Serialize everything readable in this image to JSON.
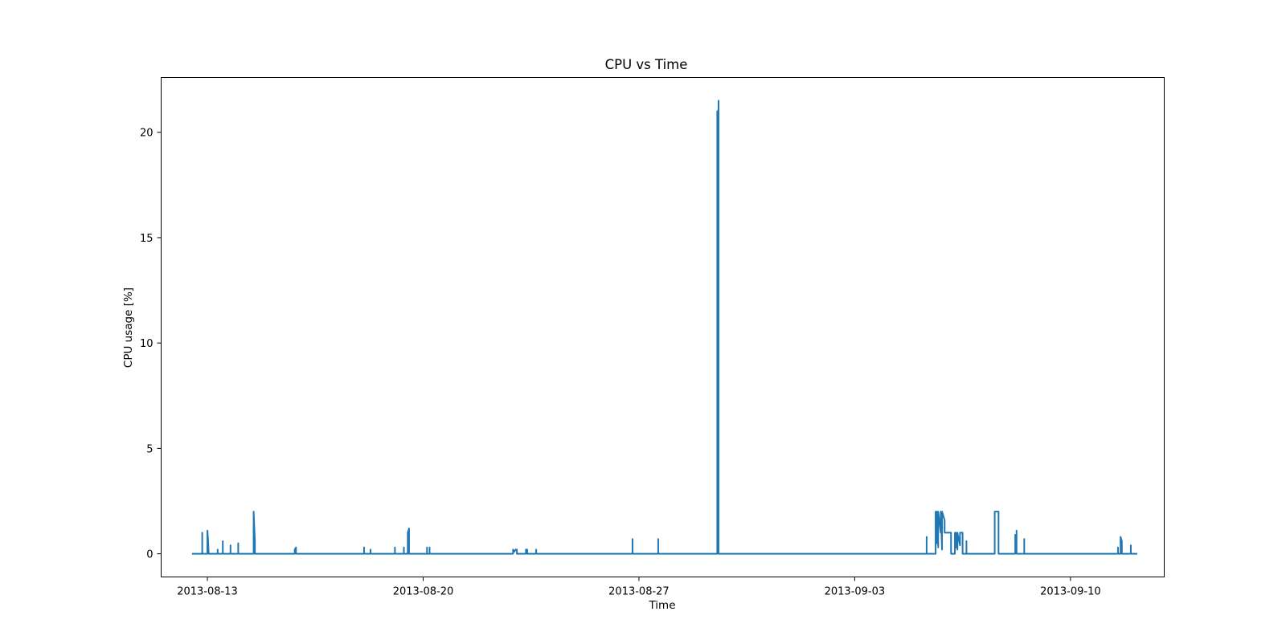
{
  "chart_data": {
    "type": "line",
    "title": "CPU vs Time",
    "xlabel": "Time",
    "ylabel": "CPU usage [%]",
    "x_ticks": [
      "2013-08-13",
      "2013-08-20",
      "2013-08-27",
      "2013-09-03",
      "2013-09-10"
    ],
    "y_ticks": [
      "0",
      "5",
      "10",
      "15",
      "20"
    ],
    "xlim": [
      "2013-08-11T12:00",
      "2013-09-13T01:00"
    ],
    "ylim": [
      -1.1,
      22.6
    ],
    "grid": false,
    "legend": "none",
    "series": [
      {
        "color": "#1f77b4",
        "points": [
          [
            "2013-08-12T12:00",
            0
          ],
          [
            "2013-08-12T20:00",
            0
          ],
          [
            "2013-08-12T20:00",
            1.0
          ],
          [
            "2013-08-12T20:00",
            0
          ],
          [
            "2013-08-13T00:00",
            0
          ],
          [
            "2013-08-13T00:00",
            1.1
          ],
          [
            "2013-08-13T00:30",
            0.7
          ],
          [
            "2013-08-13T01:00",
            0
          ],
          [
            "2013-08-13T08:00",
            0
          ],
          [
            "2013-08-13T08:00",
            0.2
          ],
          [
            "2013-08-13T08:00",
            0
          ],
          [
            "2013-08-13T12:00",
            0
          ],
          [
            "2013-08-13T12:00",
            0.6
          ],
          [
            "2013-08-13T12:00",
            0
          ],
          [
            "2013-08-13T18:00",
            0
          ],
          [
            "2013-08-13T18:00",
            0.4
          ],
          [
            "2013-08-13T18:00",
            0
          ],
          [
            "2013-08-14T00:00",
            0
          ],
          [
            "2013-08-14T00:00",
            0.5
          ],
          [
            "2013-08-14T00:00",
            0
          ],
          [
            "2013-08-14T12:00",
            0
          ],
          [
            "2013-08-14T12:00",
            2.0
          ],
          [
            "2013-08-14T13:00",
            0.6
          ],
          [
            "2013-08-14T13:00",
            0
          ],
          [
            "2013-08-15T20:00",
            0
          ],
          [
            "2013-08-15T20:00",
            0.2
          ],
          [
            "2013-08-15T21:00",
            0.3
          ],
          [
            "2013-08-15T21:00",
            0
          ],
          [
            "2013-08-18T02:00",
            0
          ],
          [
            "2013-08-18T02:00",
            0.3
          ],
          [
            "2013-08-18T02:00",
            0
          ],
          [
            "2013-08-18T07:00",
            0
          ],
          [
            "2013-08-18T07:00",
            0.2
          ],
          [
            "2013-08-18T07:00",
            0
          ],
          [
            "2013-08-19T02:00",
            0
          ],
          [
            "2013-08-19T02:00",
            0.3
          ],
          [
            "2013-08-19T02:00",
            0
          ],
          [
            "2013-08-19T09:00",
            0
          ],
          [
            "2013-08-19T09:00",
            0.3
          ],
          [
            "2013-08-19T09:00",
            0
          ],
          [
            "2013-08-19T12:00",
            0
          ],
          [
            "2013-08-19T12:00",
            1.0
          ],
          [
            "2013-08-19T13:00",
            1.2
          ],
          [
            "2013-08-19T13:00",
            0
          ],
          [
            "2013-08-20T03:00",
            0
          ],
          [
            "2013-08-20T03:00",
            0.3
          ],
          [
            "2013-08-20T03:00",
            0
          ],
          [
            "2013-08-20T05:00",
            0
          ],
          [
            "2013-08-20T05:00",
            0.3
          ],
          [
            "2013-08-20T05:00",
            0
          ],
          [
            "2013-08-22T22:00",
            0
          ],
          [
            "2013-08-22T22:00",
            0.2
          ],
          [
            "2013-08-22T23:00",
            0.1
          ],
          [
            "2013-08-23T00:00",
            0.2
          ],
          [
            "2013-08-23T01:00",
            0.2
          ],
          [
            "2013-08-23T01:00",
            0
          ],
          [
            "2013-08-23T08:00",
            0
          ],
          [
            "2013-08-23T08:00",
            0.2
          ],
          [
            "2013-08-23T09:00",
            0.2
          ],
          [
            "2013-08-23T09:00",
            0
          ],
          [
            "2013-08-23T16:00",
            0
          ],
          [
            "2013-08-23T16:00",
            0.2
          ],
          [
            "2013-08-23T16:00",
            0
          ],
          [
            "2013-08-26T19:00",
            0
          ],
          [
            "2013-08-26T19:00",
            0.7
          ],
          [
            "2013-08-26T19:00",
            0
          ],
          [
            "2013-08-27T15:00",
            0
          ],
          [
            "2013-08-27T15:00",
            0.7
          ],
          [
            "2013-08-27T15:00",
            0
          ],
          [
            "2013-08-29T13:00",
            0
          ],
          [
            "2013-08-29T13:00",
            21.0
          ],
          [
            "2013-08-29T13:00",
            15.8
          ],
          [
            "2013-08-29T14:00",
            21.5
          ],
          [
            "2013-08-29T14:00",
            0
          ],
          [
            "2013-09-05T08:00",
            0
          ],
          [
            "2013-09-05T08:00",
            0.8
          ],
          [
            "2013-09-05T08:00",
            0
          ],
          [
            "2013-09-05T15:00",
            0
          ],
          [
            "2013-09-05T15:00",
            2.0
          ],
          [
            "2013-09-05T16:00",
            0.5
          ],
          [
            "2013-09-05T16:00",
            2.0
          ],
          [
            "2013-09-05T17:00",
            0.3
          ],
          [
            "2013-09-05T17:00",
            2.0
          ],
          [
            "2013-09-05T19:00",
            1.0
          ],
          [
            "2013-09-05T19:00",
            2.0
          ],
          [
            "2013-09-05T20:00",
            0.2
          ],
          [
            "2013-09-05T20:00",
            2.0
          ],
          [
            "2013-09-05T22:00",
            1.6
          ],
          [
            "2013-09-05T22:00",
            1.0
          ],
          [
            "2013-09-06T03:00",
            1.0
          ],
          [
            "2013-09-06T03:00",
            0
          ],
          [
            "2013-09-06T06:00",
            0
          ],
          [
            "2013-09-06T06:00",
            1.0
          ],
          [
            "2013-09-06T07:00",
            0.3
          ],
          [
            "2013-09-06T07:00",
            1.0
          ],
          [
            "2013-09-06T08:00",
            0.2
          ],
          [
            "2013-09-06T08:00",
            1.0
          ],
          [
            "2013-09-06T10:00",
            0.4
          ],
          [
            "2013-09-06T10:00",
            1.0
          ],
          [
            "2013-09-06T12:00",
            1.0
          ],
          [
            "2013-09-06T12:00",
            0
          ],
          [
            "2013-09-06T15:00",
            0
          ],
          [
            "2013-09-06T15:00",
            0.6
          ],
          [
            "2013-09-06T15:00",
            0
          ],
          [
            "2013-09-07T13:00",
            0
          ],
          [
            "2013-09-07T13:00",
            2.0
          ],
          [
            "2013-09-07T16:00",
            2.0
          ],
          [
            "2013-09-07T16:00",
            0
          ],
          [
            "2013-09-08T05:00",
            0
          ],
          [
            "2013-09-08T05:00",
            0.9
          ],
          [
            "2013-09-08T06:00",
            0.2
          ],
          [
            "2013-09-08T06:00",
            1.1
          ],
          [
            "2013-09-08T06:00",
            0
          ],
          [
            "2013-09-08T12:00",
            0
          ],
          [
            "2013-09-08T12:00",
            0.7
          ],
          [
            "2013-09-08T12:00",
            0
          ],
          [
            "2013-09-11T13:00",
            0
          ],
          [
            "2013-09-11T13:00",
            0.3
          ],
          [
            "2013-09-11T13:00",
            0
          ],
          [
            "2013-09-11T15:00",
            0
          ],
          [
            "2013-09-11T15:00",
            0.8
          ],
          [
            "2013-09-11T16:00",
            0.6
          ],
          [
            "2013-09-11T16:00",
            0
          ],
          [
            "2013-09-11T23:00",
            0
          ],
          [
            "2013-09-11T23:00",
            0.4
          ],
          [
            "2013-09-11T23:00",
            0
          ],
          [
            "2013-09-12T04:00",
            0
          ]
        ]
      }
    ]
  }
}
